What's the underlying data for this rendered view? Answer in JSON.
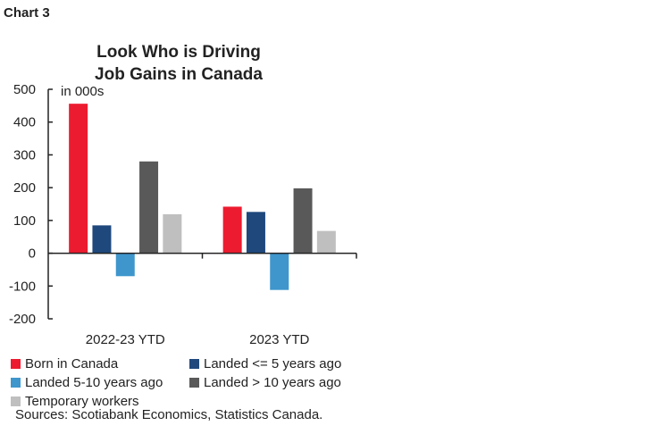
{
  "chart_label": "Chart 3",
  "chart_data": {
    "type": "bar",
    "title": "Look Who is Driving Job Gains in Canada",
    "title_lines": [
      "Look Who is Driving",
      "Job Gains in Canada"
    ],
    "unit_label": "in 000s",
    "categories": [
      "2022-23 YTD",
      "2023 YTD"
    ],
    "ylim": [
      -200,
      500
    ],
    "yticks": [
      500,
      400,
      300,
      200,
      100,
      0,
      -100,
      -200
    ],
    "grid": false,
    "legend_placement": "bottom",
    "series": [
      {
        "name": "Born in Canada",
        "color": "#ED1B2F",
        "values": [
          456,
          142
        ]
      },
      {
        "name": "Landed <= 5 years ago",
        "color": "#1F497D",
        "values": [
          85,
          126
        ]
      },
      {
        "name": "Landed 5-10 years ago",
        "color": "#3E96CC",
        "values": [
          -70,
          -112
        ]
      },
      {
        "name": "Landed > 10 years ago",
        "color": "#595959",
        "values": [
          280,
          198
        ]
      },
      {
        "name": "Temporary workers",
        "color": "#BFBFBF",
        "values": [
          119,
          68
        ]
      }
    ]
  },
  "source": "Sources: Scotiabank Economics, Statistics Canada."
}
